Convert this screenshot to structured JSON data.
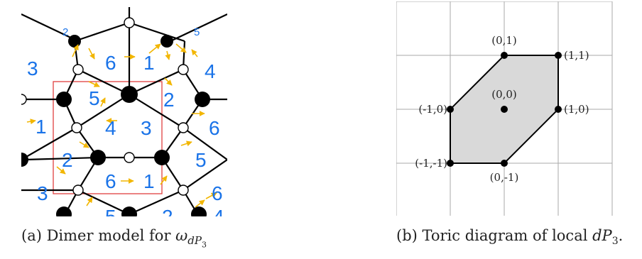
{
  "panel_a": {
    "caption_prefix": "(a) Dimer model for ",
    "caption_math": "ω",
    "caption_sub": "dP",
    "caption_subsub": "3",
    "face_labels": [
      "2",
      "5",
      "3",
      "6",
      "1",
      "4",
      "5",
      "2",
      "1",
      "4",
      "3",
      "6",
      "2",
      "5",
      "3",
      "6",
      "1",
      "5",
      "2",
      "6",
      "4"
    ],
    "colors": {
      "face_label": "#1a73e8",
      "arrow": "#f2b600",
      "fundamental_domain": "#e04040",
      "edge": "#000000"
    }
  },
  "panel_b": {
    "caption_prefix": "(b) Toric diagram of local ",
    "caption_math": "dP",
    "caption_sub": "3",
    "caption_suffix": ".",
    "points": [
      {
        "label": "(0,1)",
        "x": 0,
        "y": 1
      },
      {
        "label": "(1,1)",
        "x": 1,
        "y": 1
      },
      {
        "label": "(-1,0)",
        "x": -1,
        "y": 0
      },
      {
        "label": "(0,0)",
        "x": 0,
        "y": 0
      },
      {
        "label": "(1,0)",
        "x": 1,
        "y": 0
      },
      {
        "label": "(-1,-1)",
        "x": -1,
        "y": -1
      },
      {
        "label": "(0,-1)",
        "x": 0,
        "y": -1
      }
    ],
    "polygon_order": [
      "(0,1)",
      "(1,1)",
      "(1,0)",
      "(0,-1)",
      "(-1,-1)",
      "(-1,0)"
    ],
    "colors": {
      "fill": "#d9d9d9",
      "grid": "#aaaaaa"
    }
  }
}
